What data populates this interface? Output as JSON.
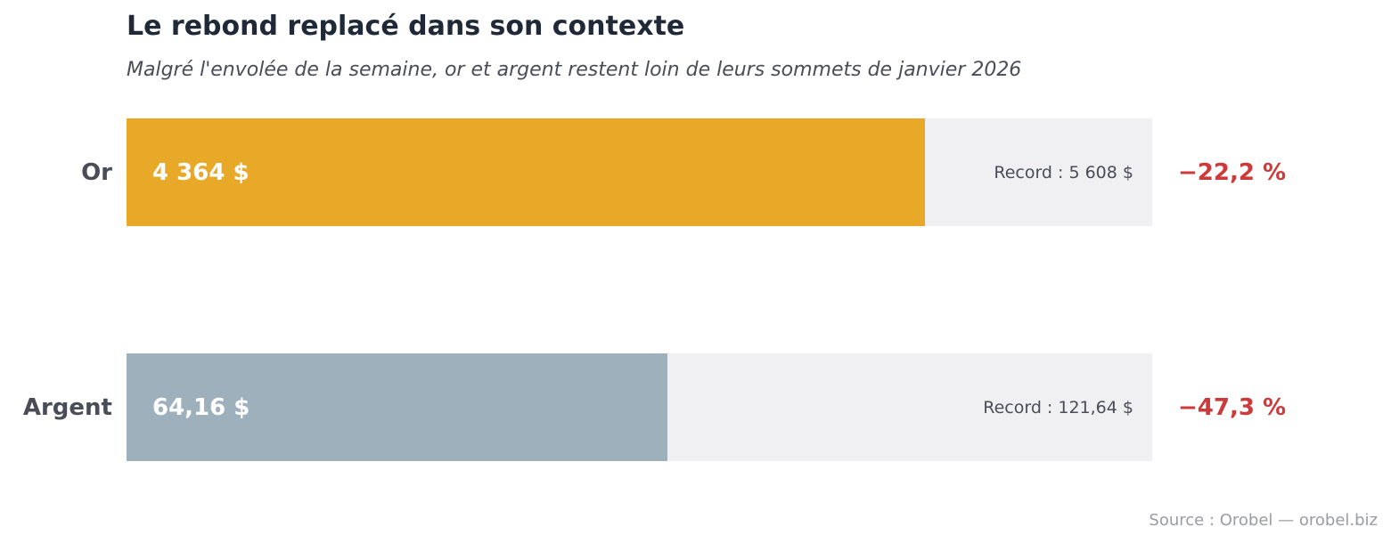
{
  "chart_data": {
    "type": "bar",
    "orientation": "horizontal",
    "title": "Le rebond replacé dans son contexte",
    "subtitle": "Malgré l'envolée de la semaine, or et argent restent loin de leurs sommets de janvier 2026",
    "categories": [
      "Or",
      "Argent"
    ],
    "series": [
      {
        "values": [
          4364,
          64.16
        ],
        "value_labels": [
          "4 364 $",
          "64,16 $"
        ],
        "record_values": [
          5608,
          121.64
        ],
        "record_labels": [
          "Record : 5 608 $",
          "Record : 121,64 $"
        ],
        "change_labels": [
          "−22,2 %",
          "−47,3 %"
        ],
        "colors": [
          "#e8a928",
          "#9fb0bd"
        ]
      }
    ],
    "track_color": "#f0f0f2",
    "change_color": "#cc3a3a",
    "grid": false,
    "legend": "none"
  },
  "footer": {
    "source": "Source : Orobel — orobel.biz"
  }
}
